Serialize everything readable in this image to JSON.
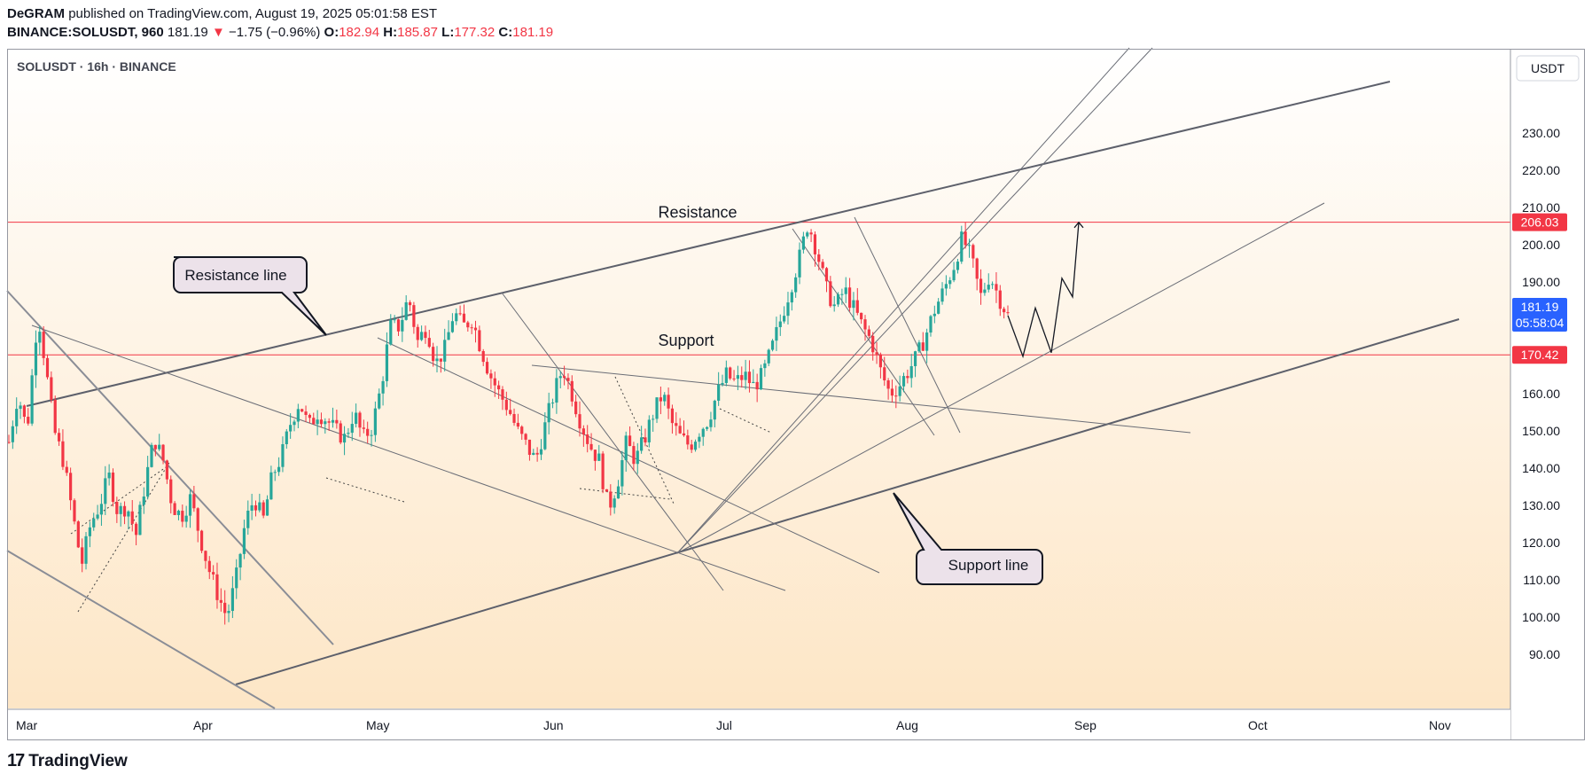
{
  "header": {
    "author": "DeGRAM",
    "published_text": "published on TradingView.com, August 19, 2025 05:01:58 EST",
    "symbol": "BINANCE:SOLUSDT, 960",
    "last": "181.19",
    "change_arrow": "▼",
    "change": "−1.75 (−0.96%)",
    "open_label": "O:",
    "open": "182.94",
    "high_label": "H:",
    "high": "185.87",
    "low_label": "L:",
    "low": "177.32",
    "close_label": "C:",
    "close": "181.19"
  },
  "legend": "SOLUSDT · 16h · BINANCE",
  "footer": {
    "brand": "TradingView"
  },
  "colors": {
    "up": "#26a69a",
    "down": "#f23645",
    "hline": "#f23645",
    "current": "#2962ff",
    "background_top": "#ffffff",
    "background_bottom": "#fde7c8"
  },
  "chart_data": {
    "type": "candlestick",
    "ylabel": "USDT",
    "y_ticks": [
      90,
      100,
      110,
      120,
      130,
      140,
      150,
      160,
      170,
      180,
      190,
      200,
      210,
      220,
      230
    ],
    "y_tick_labels": [
      "90.00",
      "100.00",
      "110.00",
      "120.00",
      "130.00",
      "140.00",
      "150.00",
      "160.00",
      "170.00",
      "180.00",
      "190.00",
      "200.00",
      "210.00",
      "220.00",
      "230.00"
    ],
    "x_tick_labels": [
      "Mar",
      "Apr",
      "May",
      "Jun",
      "Jul",
      "Aug",
      "Sep",
      "Oct",
      "Nov"
    ],
    "ylim": [
      89,
      245
    ],
    "price_badges": [
      {
        "value": 206.03,
        "label": "206.03",
        "color": "#f23645"
      },
      {
        "value": 181.19,
        "label": "181.19",
        "sublabel": "05:58:04",
        "color": "#2962ff"
      },
      {
        "value": 170.42,
        "label": "170.42",
        "color": "#f23645"
      }
    ],
    "horizontal_levels": [
      {
        "name": "Resistance",
        "value": 206.03
      },
      {
        "name": "Support",
        "value": 170.42
      }
    ],
    "annotations": [
      {
        "text": "Resistance line"
      },
      {
        "text": "Support line"
      }
    ],
    "series_path_close": [
      [
        0,
        147
      ],
      [
        0.5,
        160
      ],
      [
        1,
        150
      ],
      [
        1.6,
        182
      ],
      [
        2,
        168
      ],
      [
        2.5,
        150
      ],
      [
        3,
        142
      ],
      [
        3.5,
        128
      ],
      [
        4,
        114
      ],
      [
        4.5,
        125
      ],
      [
        5,
        130
      ],
      [
        5.5,
        138
      ],
      [
        6,
        128
      ],
      [
        6.5,
        130
      ],
      [
        7,
        122
      ],
      [
        7.5,
        136
      ],
      [
        8,
        148
      ],
      [
        8.5,
        142
      ],
      [
        9,
        130
      ],
      [
        9.5,
        127
      ],
      [
        10,
        132
      ],
      [
        10.5,
        122
      ],
      [
        11,
        113
      ],
      [
        11.5,
        106
      ],
      [
        12,
        100
      ],
      [
        12.5,
        110
      ],
      [
        13,
        125
      ],
      [
        13.5,
        132
      ],
      [
        14,
        126
      ],
      [
        14.5,
        138
      ],
      [
        15,
        143
      ],
      [
        15.5,
        152
      ],
      [
        16,
        158
      ],
      [
        16.5,
        151
      ],
      [
        17,
        155
      ],
      [
        17.5,
        153
      ],
      [
        18,
        150
      ],
      [
        18.5,
        148
      ],
      [
        19,
        155
      ],
      [
        19.5,
        148
      ],
      [
        20,
        151
      ],
      [
        20.5,
        162
      ],
      [
        21,
        178
      ],
      [
        21.5,
        178
      ],
      [
        22,
        186
      ],
      [
        22.5,
        174
      ],
      [
        23,
        178
      ],
      [
        23.5,
        168
      ],
      [
        24,
        172
      ],
      [
        24.5,
        182
      ],
      [
        25,
        178
      ],
      [
        25.5,
        180
      ],
      [
        26,
        172
      ],
      [
        26.5,
        165
      ],
      [
        27,
        160
      ],
      [
        27.5,
        156
      ],
      [
        28,
        150
      ],
      [
        28.5,
        146
      ],
      [
        29,
        142
      ],
      [
        29.5,
        151
      ],
      [
        30,
        160
      ],
      [
        30.5,
        167
      ],
      [
        31,
        160
      ],
      [
        31.5,
        152
      ],
      [
        32,
        146
      ],
      [
        32.5,
        142
      ],
      [
        33,
        129
      ],
      [
        33.5,
        136
      ],
      [
        34,
        147
      ],
      [
        34.5,
        142
      ],
      [
        35,
        148
      ],
      [
        35.5,
        155
      ],
      [
        36,
        160
      ],
      [
        36.5,
        152
      ],
      [
        37,
        148
      ],
      [
        37.5,
        146
      ],
      [
        38,
        150
      ],
      [
        38.5,
        153
      ],
      [
        39,
        160
      ],
      [
        39.5,
        165
      ],
      [
        40,
        163
      ],
      [
        40.5,
        165
      ],
      [
        41,
        162
      ],
      [
        41.5,
        165
      ],
      [
        42,
        172
      ],
      [
        42.5,
        180
      ],
      [
        43,
        188
      ],
      [
        43.5,
        196
      ],
      [
        44,
        206
      ],
      [
        44.5,
        198
      ],
      [
        45,
        188
      ],
      [
        45.5,
        183
      ],
      [
        46,
        188
      ],
      [
        46.5,
        183
      ],
      [
        47,
        178
      ],
      [
        47.5,
        174
      ],
      [
        48,
        166
      ],
      [
        48.5,
        160
      ],
      [
        49,
        162
      ],
      [
        49.5,
        166
      ],
      [
        50,
        170
      ],
      [
        50.5,
        176
      ],
      [
        51,
        183
      ],
      [
        51.5,
        188
      ],
      [
        52,
        194
      ],
      [
        52.5,
        202
      ],
      [
        53,
        196
      ],
      [
        53.5,
        186
      ],
      [
        54,
        192
      ],
      [
        54.5,
        186
      ],
      [
        55,
        181
      ]
    ],
    "projected_path": [
      {
        "x": "2025-08-19",
        "y": 181
      },
      {
        "x": "2025-08-20",
        "y": 170
      },
      {
        "x": "2025-08-22",
        "y": 183
      },
      {
        "x": "2025-08-24",
        "y": 171
      },
      {
        "x": "2025-08-26",
        "y": 191
      },
      {
        "x": "2025-08-27",
        "y": 186
      },
      {
        "x": "2025-08-28",
        "y": 206
      }
    ]
  }
}
